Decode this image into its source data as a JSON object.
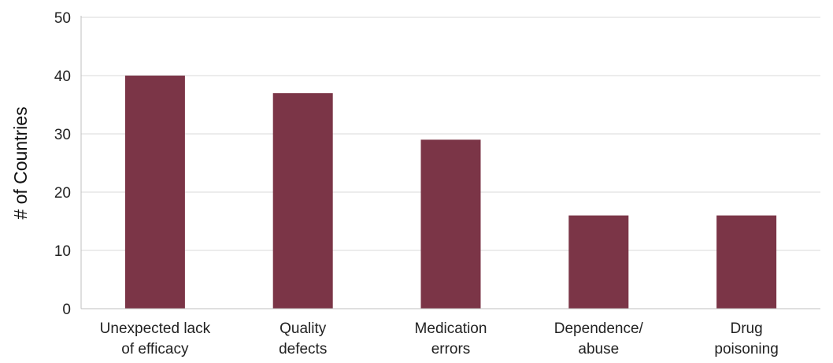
{
  "chart_data": {
    "type": "bar",
    "title": "",
    "xlabel": "",
    "ylabel": "# of Countries",
    "categories": [
      [
        "Unexpected lack",
        "of efficacy"
      ],
      [
        "Quality",
        "defects"
      ],
      [
        "Medication",
        "errors"
      ],
      [
        "Dependence/",
        "abuse"
      ],
      [
        "Drug",
        "poisoning"
      ]
    ],
    "values": [
      40,
      37,
      29,
      16,
      16
    ],
    "ylim": [
      0,
      50
    ],
    "yticks": [
      0,
      10,
      20,
      30,
      40,
      50
    ],
    "grid": true,
    "bar_color": "#7b3547",
    "grid_color": "#d9d9d9"
  }
}
